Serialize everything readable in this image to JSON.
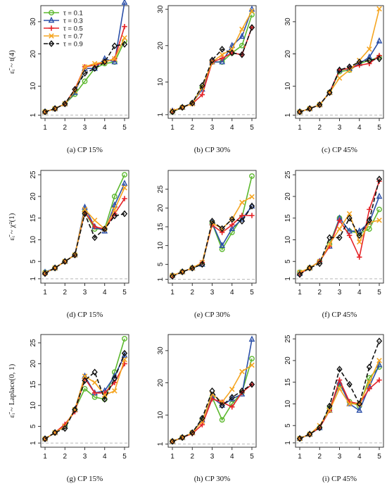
{
  "colors": {
    "0.1": "#5cb82e",
    "0.3": "#2b4fa8",
    "0.5": "#e52428",
    "0.7": "#f5a623",
    "0.9": "#111111",
    "baseline": "#b8b8b8"
  },
  "legend": {
    "placement": "top-left of panel (a)",
    "entries": [
      {
        "label": "τ = 0.1",
        "key": "0.1",
        "marker": "circle"
      },
      {
        "label": "τ = 0.3",
        "key": "0.3",
        "marker": "triangle"
      },
      {
        "label": "τ = 0.5",
        "key": "0.5",
        "marker": "plus"
      },
      {
        "label": "τ = 0.7",
        "key": "0.7",
        "marker": "x"
      },
      {
        "label": "τ = 0.9",
        "key": "0.9",
        "marker": "diamond"
      }
    ]
  },
  "row_labels": [
    "ε̃ᵢ ~ t(4)",
    "ε̃ᵢ ~ χ²(1)",
    "ε̃ᵢ ~ Laplace(0, 1)"
  ],
  "chart_data": [
    {
      "type": "line",
      "panel": "a",
      "caption": "(a)    CP 15%",
      "x": [
        1,
        1.5,
        2,
        2.5,
        3,
        3.5,
        4,
        4.5,
        5
      ],
      "ylim": [
        0,
        35
      ],
      "yticks": [
        1,
        10,
        20,
        30
      ],
      "xticks": [
        1,
        2,
        3,
        4,
        5
      ],
      "baseline": 1,
      "series": [
        {
          "name": "τ = 0.1",
          "key": "0.1",
          "values": [
            2,
            3,
            4.5,
            7.5,
            11.5,
            15.5,
            17,
            17.5,
            24
          ]
        },
        {
          "name": "τ = 0.3",
          "key": "0.3",
          "values": [
            2,
            3,
            4.5,
            8,
            15.5,
            15.5,
            18.5,
            17.5,
            36
          ]
        },
        {
          "name": "τ = 0.5",
          "key": "0.5",
          "values": [
            2,
            3,
            4.5,
            9,
            16,
            16.5,
            17.5,
            18.5,
            28.5
          ]
        },
        {
          "name": "τ = 0.7",
          "key": "0.7",
          "values": [
            2,
            3,
            4.5,
            8.5,
            16,
            17,
            17.5,
            18.5,
            25
          ]
        },
        {
          "name": "τ = 0.9",
          "key": "0.9",
          "values": [
            2,
            3,
            4.5,
            9,
            14,
            15.5,
            17.5,
            22.5,
            23
          ]
        }
      ]
    },
    {
      "type": "line",
      "panel": "b",
      "caption": "(b)    CP 30%",
      "x": [
        1,
        1.5,
        2,
        2.5,
        3,
        3.5,
        4,
        4.5,
        5
      ],
      "ylim": [
        0,
        31
      ],
      "yticks": [
        1,
        10,
        20,
        30
      ],
      "xticks": [
        1,
        2,
        3,
        4,
        5
      ],
      "baseline": 1,
      "series": [
        {
          "name": "τ = 0.1",
          "key": "0.1",
          "values": [
            1.8,
            3,
            4.2,
            8.5,
            15.5,
            15.5,
            18,
            20,
            28.5
          ]
        },
        {
          "name": "τ = 0.3",
          "key": "0.3",
          "values": [
            2,
            3,
            4.2,
            8,
            15.5,
            15.5,
            20,
            22.5,
            30
          ]
        },
        {
          "name": "τ = 0.5",
          "key": "0.5",
          "values": [
            2,
            3,
            4,
            6.5,
            15.5,
            16.5,
            18,
            17.5,
            25
          ]
        },
        {
          "name": "τ = 0.7",
          "key": "0.7",
          "values": [
            2,
            3,
            4,
            8.5,
            15.5,
            17.5,
            19,
            24.5,
            29.5
          ]
        },
        {
          "name": "τ = 0.9",
          "key": "0.9",
          "values": [
            1.8,
            3,
            4.2,
            9,
            16,
            19,
            18,
            17.5,
            25
          ]
        }
      ]
    },
    {
      "type": "line",
      "panel": "c",
      "caption": "(c)    CP 45%",
      "x": [
        1,
        1.5,
        2,
        2.5,
        3,
        3.5,
        4,
        4.5,
        5
      ],
      "ylim": [
        0,
        35
      ],
      "yticks": [
        1,
        10,
        20,
        30
      ],
      "xticks": [
        1,
        2,
        3,
        4,
        5
      ],
      "baseline": 1,
      "series": [
        {
          "name": "τ = 0.1",
          "key": "0.1",
          "values": [
            2,
            3,
            4.2,
            8,
            14.5,
            15,
            17,
            18,
            19
          ]
        },
        {
          "name": "τ = 0.3",
          "key": "0.3",
          "values": [
            2,
            3,
            4.2,
            8,
            15,
            15.5,
            17,
            19,
            24
          ]
        },
        {
          "name": "τ = 0.5",
          "key": "0.5",
          "values": [
            2,
            3,
            4.2,
            8,
            15,
            15.5,
            16.5,
            17,
            19.5
          ]
        },
        {
          "name": "τ = 0.7",
          "key": "0.7",
          "values": [
            2,
            3,
            4.2,
            8,
            12.5,
            15,
            18,
            21.5,
            34
          ]
        },
        {
          "name": "τ = 0.9",
          "key": "0.9",
          "values": [
            2,
            3,
            4.2,
            8,
            15,
            16,
            17.5,
            18,
            18.5
          ]
        }
      ]
    },
    {
      "type": "line",
      "panel": "d",
      "caption": "(d)    CP 15%",
      "x": [
        1,
        1.5,
        2,
        2.5,
        3,
        3.5,
        4,
        4.5,
        5
      ],
      "ylim": [
        0,
        26
      ],
      "yticks": [
        1,
        5,
        10,
        15,
        20,
        25
      ],
      "xticks": [
        1,
        2,
        3,
        4,
        5
      ],
      "baseline": 1,
      "series": [
        {
          "name": "τ = 0.1",
          "key": "0.1",
          "values": [
            2.5,
            3.5,
            5,
            6.5,
            16.5,
            12.5,
            12.5,
            20,
            25
          ]
        },
        {
          "name": "τ = 0.3",
          "key": "0.3",
          "values": [
            2.5,
            3.5,
            5,
            6.5,
            17.5,
            13,
            12,
            18,
            23
          ]
        },
        {
          "name": "τ = 0.5",
          "key": "0.5",
          "values": [
            2.3,
            3.5,
            5,
            6.5,
            16.5,
            13,
            12.5,
            16,
            19.5
          ]
        },
        {
          "name": "τ = 0.7",
          "key": "0.7",
          "values": [
            2.3,
            3.5,
            5,
            6.5,
            17,
            14.5,
            12.5,
            17,
            22
          ]
        },
        {
          "name": "τ = 0.9",
          "key": "0.9",
          "values": [
            2.2,
            3.5,
            5,
            6.5,
            16,
            10.5,
            12.5,
            15.5,
            16
          ]
        }
      ]
    },
    {
      "type": "line",
      "panel": "e",
      "caption": "(e)    CP 30%",
      "x": [
        1,
        1.5,
        2,
        2.5,
        3,
        3.5,
        4,
        4.5,
        5
      ],
      "ylim": [
        0,
        30
      ],
      "yticks": [
        1,
        5,
        10,
        15,
        20,
        25
      ],
      "xticks": [
        1,
        2,
        3,
        4,
        5
      ],
      "baseline": 1,
      "series": [
        {
          "name": "τ = 0.1",
          "key": "0.1",
          "values": [
            2,
            3,
            4,
            5,
            16,
            9,
            13.5,
            17.5,
            28.5
          ]
        },
        {
          "name": "τ = 0.3",
          "key": "0.3",
          "values": [
            2,
            3,
            4,
            5,
            16,
            10,
            14.5,
            17,
            20.5
          ]
        },
        {
          "name": "τ = 0.5",
          "key": "0.5",
          "values": [
            2,
            3,
            4,
            5.5,
            15.5,
            13.5,
            15.5,
            18,
            18
          ]
        },
        {
          "name": "τ = 0.7",
          "key": "0.7",
          "values": [
            2,
            3,
            4,
            5.5,
            16,
            14.5,
            17,
            21.5,
            23
          ]
        },
        {
          "name": "τ = 0.9",
          "key": "0.9",
          "values": [
            1.8,
            3,
            4,
            5,
            16.5,
            14.5,
            17,
            16.5,
            20.5
          ]
        }
      ]
    },
    {
      "type": "line",
      "panel": "f",
      "caption": "(f)    CP 45%",
      "x": [
        1,
        1.5,
        2,
        2.5,
        3,
        3.5,
        4,
        4.5,
        5
      ],
      "ylim": [
        0,
        26
      ],
      "yticks": [
        1,
        5,
        10,
        15,
        20,
        25
      ],
      "xticks": [
        1,
        2,
        3,
        4,
        5
      ],
      "baseline": 1,
      "series": [
        {
          "name": "τ = 0.1",
          "key": "0.1",
          "values": [
            2.5,
            3.5,
            5,
            9,
            15,
            12,
            11.5,
            12.5,
            17
          ]
        },
        {
          "name": "τ = 0.3",
          "key": "0.3",
          "values": [
            2.2,
            3.5,
            5,
            8.5,
            15,
            12,
            12,
            14,
            20
          ]
        },
        {
          "name": "τ = 0.5",
          "key": "0.5",
          "values": [
            2.2,
            3.5,
            5,
            8.5,
            14.5,
            11,
            6,
            17,
            23.5
          ]
        },
        {
          "name": "τ = 0.7",
          "key": "0.7",
          "values": [
            2.5,
            3.5,
            5,
            9,
            12.5,
            16,
            9.5,
            14,
            14.5
          ]
        },
        {
          "name": "τ = 0.9",
          "key": "0.9",
          "values": [
            2,
            3.5,
            4.5,
            10.5,
            10.5,
            15,
            11,
            14.5,
            24
          ]
        }
      ]
    },
    {
      "type": "line",
      "panel": "g",
      "caption": "(g)    CP 15%",
      "x": [
        1,
        1.5,
        2,
        2.5,
        3,
        3.5,
        4,
        4.5,
        5
      ],
      "ylim": [
        0,
        27
      ],
      "yticks": [
        1,
        5,
        10,
        15,
        20,
        25
      ],
      "xticks": [
        1,
        2,
        3,
        4,
        5
      ],
      "baseline": 1,
      "series": [
        {
          "name": "τ = 0.1",
          "key": "0.1",
          "values": [
            2,
            3.5,
            5,
            9,
            14,
            12,
            11.5,
            18,
            26
          ]
        },
        {
          "name": "τ = 0.3",
          "key": "0.3",
          "values": [
            2,
            3.5,
            5,
            9,
            17,
            13,
            13.5,
            17,
            22
          ]
        },
        {
          "name": "τ = 0.5",
          "key": "0.5",
          "values": [
            2,
            3.5,
            5.5,
            8.5,
            16.5,
            13,
            13,
            15.5,
            20
          ]
        },
        {
          "name": "τ = 0.7",
          "key": "0.7",
          "values": [
            2,
            3.5,
            5,
            9,
            17,
            15.5,
            12.5,
            13.5,
            21
          ]
        },
        {
          "name": "τ = 0.9",
          "key": "0.9",
          "values": [
            2,
            3.5,
            4.5,
            9,
            16,
            18,
            11.5,
            16.5,
            22.5
          ]
        }
      ]
    },
    {
      "type": "line",
      "panel": "h",
      "caption": "(h)    CP 30%",
      "x": [
        1,
        1.5,
        2,
        2.5,
        3,
        3.5,
        4,
        4.5,
        5
      ],
      "ylim": [
        0,
        35
      ],
      "yticks": [
        1,
        10,
        20,
        30
      ],
      "xticks": [
        1,
        2,
        3,
        4,
        5
      ],
      "baseline": 1,
      "series": [
        {
          "name": "τ = 0.1",
          "key": "0.1",
          "values": [
            1.8,
            3,
            4.5,
            8.5,
            15.5,
            8.5,
            13.5,
            17,
            27.5
          ]
        },
        {
          "name": "τ = 0.3",
          "key": "0.3",
          "values": [
            1.8,
            3,
            4.5,
            8.5,
            15.5,
            13,
            15,
            16.5,
            33.5
          ]
        },
        {
          "name": "τ = 0.5",
          "key": "0.5",
          "values": [
            1.8,
            3,
            4.2,
            7,
            15,
            14,
            12.5,
            17,
            19.5
          ]
        },
        {
          "name": "τ = 0.7",
          "key": "0.7",
          "values": [
            1.8,
            3,
            4.5,
            8,
            16.5,
            14,
            18,
            23.5,
            25.5
          ]
        },
        {
          "name": "τ = 0.9",
          "key": "0.9",
          "values": [
            1.8,
            3,
            4.5,
            9,
            17.5,
            13,
            15.5,
            17.5,
            19.5
          ]
        }
      ]
    },
    {
      "type": "line",
      "panel": "i",
      "caption": "(i)    CP 45%",
      "x": [
        1,
        1.5,
        2,
        2.5,
        3,
        3.5,
        4,
        4.5,
        5
      ],
      "ylim": [
        0,
        26
      ],
      "yticks": [
        1,
        5,
        10,
        15,
        20,
        25
      ],
      "xticks": [
        1,
        2,
        3,
        4,
        5
      ],
      "baseline": 1,
      "series": [
        {
          "name": "τ = 0.1",
          "key": "0.1",
          "values": [
            2,
            3,
            4.5,
            9,
            14.5,
            10.5,
            9.5,
            16,
            18.5
          ]
        },
        {
          "name": "τ = 0.3",
          "key": "0.3",
          "values": [
            2,
            3,
            4.5,
            8.5,
            15,
            10,
            8.5,
            14,
            19
          ]
        },
        {
          "name": "τ = 0.5",
          "key": "0.5",
          "values": [
            2,
            3,
            4.5,
            8.5,
            15.5,
            10.5,
            10,
            13.5,
            15.5
          ]
        },
        {
          "name": "τ = 0.7",
          "key": "0.7",
          "values": [
            2,
            3,
            5,
            8.5,
            13.5,
            10,
            10,
            15,
            20
          ]
        },
        {
          "name": "τ = 0.9",
          "key": "0.9",
          "values": [
            2,
            3,
            4.5,
            9.5,
            18,
            14.5,
            10,
            18.5,
            24.5
          ]
        }
      ]
    }
  ]
}
